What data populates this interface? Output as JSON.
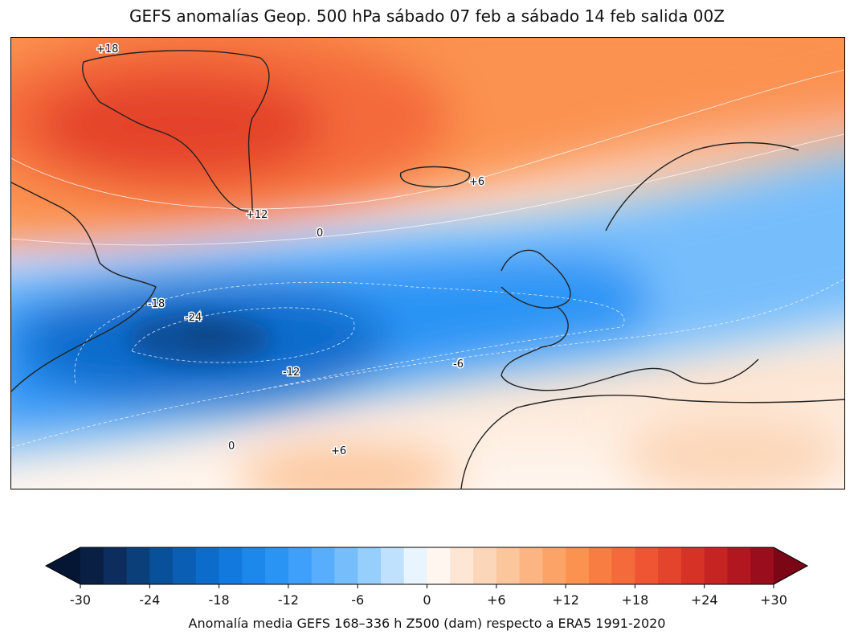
{
  "title": "GEFS anomalías Geop. 500 hPa sábado 07 feb a sábado 14 feb salida 00Z",
  "map": {
    "variable": "Z500 anomaly (dam)",
    "contour_labels": [
      {
        "text": "+18"
      },
      {
        "text": "+12"
      },
      {
        "text": "+6"
      },
      {
        "text": "0"
      },
      {
        "text": "-18"
      },
      {
        "text": "-24"
      },
      {
        "text": "-12"
      },
      {
        "text": "-6"
      },
      {
        "text": "0"
      },
      {
        "text": "+6"
      }
    ]
  },
  "colorbar": {
    "label": "Anomalía media GEFS 168–336 h Z500 (dam) respecto a ERA5 1991-2020",
    "range": [
      -30,
      30
    ],
    "step": 2,
    "extend": "both",
    "ticks": [
      "-30",
      "-24",
      "-18",
      "-12",
      "-6",
      "0",
      "+6",
      "+12",
      "+18",
      "+24",
      "+30"
    ],
    "under_color": "#041634",
    "over_color": "#7a0616",
    "colors": [
      "#0a1f44",
      "#0c2d5e",
      "#0a3f7a",
      "#08509a",
      "#0a5fb5",
      "#0b6ccc",
      "#127ade",
      "#1d88ec",
      "#2a94f5",
      "#3ea0fa",
      "#58aefc",
      "#76bdfc",
      "#96cefc",
      "#c0e1fd",
      "#e8f4fe",
      "#fff6ef",
      "#fde6d3",
      "#fcd6b8",
      "#fcc69c",
      "#fcb582",
      "#fca468",
      "#fb9250",
      "#f87d42",
      "#f46a3a",
      "#ef5533",
      "#e4432c",
      "#d63326",
      "#c62423",
      "#b2161f",
      "#9a0d1c"
    ]
  }
}
